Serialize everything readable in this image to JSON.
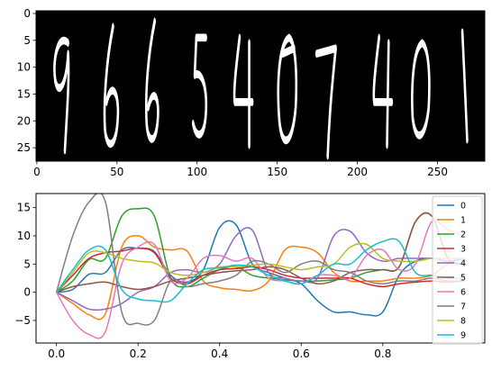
{
  "chart_data": [
    {
      "type": "image",
      "description_digits": [
        "9",
        "6",
        "6",
        "5",
        "4",
        "0",
        "7",
        "4",
        "0",
        "1"
      ],
      "xlim": [
        -0.5,
        279.5
      ],
      "ylim": [
        27.5,
        -0.5
      ],
      "xticks": [
        0,
        50,
        100,
        150,
        200,
        250
      ],
      "yticks": [
        0,
        5,
        10,
        15,
        20,
        25
      ]
    },
    {
      "type": "line",
      "xlim": [
        -0.05,
        1.05
      ],
      "ylim": [
        -9,
        17.5
      ],
      "xticks": [
        0.0,
        0.2,
        0.4,
        0.6,
        0.8
      ],
      "xtick_labels": [
        "0.0",
        "0.2",
        "0.4",
        "0.6",
        "0.8"
      ],
      "yticks": [
        -5,
        0,
        5,
        10,
        15
      ],
      "legend_position": "right",
      "grid": false,
      "series": [
        {
          "name": "0",
          "color": "#1f77b4",
          "x": [
            0,
            0.04,
            0.08,
            0.12,
            0.16,
            0.2,
            0.24,
            0.28,
            0.32,
            0.36,
            0.4,
            0.44,
            0.48,
            0.52,
            0.56,
            0.6,
            0.64,
            0.68,
            0.72,
            0.76,
            0.8,
            0.84,
            0.88,
            0.92,
            0.96,
            1.0
          ],
          "y": [
            0,
            0.5,
            3.2,
            3.5,
            7.5,
            7.8,
            7.2,
            3,
            1.8,
            4,
            11.5,
            12,
            5,
            3.5,
            2.5,
            1.5,
            -1.5,
            -3.5,
            -3.5,
            -4,
            -3.5,
            3,
            5.5,
            6,
            5.5,
            6
          ]
        },
        {
          "name": "1",
          "color": "#ff7f0e",
          "x": [
            0,
            0.04,
            0.08,
            0.12,
            0.16,
            0.2,
            0.24,
            0.28,
            0.32,
            0.36,
            0.4,
            0.44,
            0.48,
            0.52,
            0.56,
            0.6,
            0.64,
            0.68,
            0.72,
            0.76,
            0.8,
            0.84,
            0.88,
            0.92,
            0.96,
            1.0
          ],
          "y": [
            0,
            -2,
            -4,
            -3.8,
            8,
            10,
            8,
            7.5,
            7.3,
            2,
            0.8,
            0.5,
            0.3,
            2,
            7.5,
            8,
            7,
            3.5,
            2,
            2,
            2,
            2.5,
            2.5,
            3,
            5,
            5
          ]
        },
        {
          "name": "2",
          "color": "#2ca02c",
          "x": [
            0,
            0.04,
            0.08,
            0.12,
            0.16,
            0.2,
            0.24,
            0.28,
            0.32,
            0.36,
            0.4,
            0.44,
            0.48,
            0.52,
            0.56,
            0.6,
            0.64,
            0.68,
            0.72,
            0.76,
            0.8,
            0.84,
            0.88,
            0.92,
            0.96,
            1.0
          ],
          "y": [
            0,
            2,
            5.8,
            6,
            13.5,
            14.8,
            13.5,
            2.5,
            1,
            2.5,
            4,
            4.5,
            3,
            2.5,
            2.2,
            2,
            2,
            2.2,
            2.5,
            3.5,
            4,
            4.5,
            12.5,
            13.5,
            6,
            5
          ]
        },
        {
          "name": "3",
          "color": "#d62728",
          "x": [
            0,
            0.04,
            0.08,
            0.12,
            0.16,
            0.2,
            0.24,
            0.28,
            0.32,
            0.36,
            0.4,
            0.44,
            0.48,
            0.52,
            0.56,
            0.6,
            0.64,
            0.68,
            0.72,
            0.76,
            0.8,
            0.84,
            0.88,
            0.92,
            0.96,
            1.0
          ],
          "y": [
            0,
            3,
            6,
            7,
            7.3,
            7.8,
            7,
            2.5,
            1.5,
            3,
            4,
            4.2,
            4.5,
            4,
            3,
            2.5,
            2.5,
            2.5,
            2.5,
            1.5,
            1,
            1.5,
            1.8,
            2,
            1.8,
            2
          ]
        },
        {
          "name": "4",
          "color": "#9467bd",
          "x": [
            0,
            0.04,
            0.08,
            0.12,
            0.16,
            0.2,
            0.24,
            0.28,
            0.32,
            0.36,
            0.4,
            0.44,
            0.48,
            0.52,
            0.56,
            0.6,
            0.64,
            0.68,
            0.72,
            0.76,
            0.8,
            0.84,
            0.88,
            0.92,
            0.96,
            1.0
          ],
          "y": [
            0,
            -1.5,
            -3,
            -3,
            -2,
            0,
            1,
            3.5,
            4,
            3.5,
            5,
            10,
            11,
            3.5,
            2.5,
            2,
            2.5,
            10,
            10.8,
            7,
            5.5,
            6,
            6,
            6,
            5.5,
            5
          ]
        },
        {
          "name": "5",
          "color": "#8c564b",
          "x": [
            0,
            0.04,
            0.08,
            0.12,
            0.16,
            0.2,
            0.24,
            0.28,
            0.32,
            0.36,
            0.4,
            0.44,
            0.48,
            0.52,
            0.56,
            0.6,
            0.64,
            0.68,
            0.72,
            0.76,
            0.8,
            0.84,
            0.88,
            0.92,
            0.96,
            1.0
          ],
          "y": [
            0,
            1,
            1.5,
            1.8,
            1,
            0.5,
            1,
            2,
            2.5,
            3,
            3.5,
            3.8,
            4,
            4.5,
            4,
            2.5,
            1.5,
            2,
            3.5,
            4,
            4,
            4.5,
            12.5,
            13.5,
            6,
            5
          ]
        },
        {
          "name": "6",
          "color": "#e377c2",
          "x": [
            0,
            0.04,
            0.08,
            0.12,
            0.16,
            0.2,
            0.24,
            0.28,
            0.32,
            0.36,
            0.4,
            0.44,
            0.48,
            0.52,
            0.56,
            0.6,
            0.64,
            0.68,
            0.72,
            0.76,
            0.8,
            0.84,
            0.88,
            0.92,
            0.96,
            1.0
          ],
          "y": [
            0,
            -5,
            -7.5,
            -7,
            5,
            8,
            8.5,
            2,
            2.5,
            6,
            6.5,
            5.5,
            6,
            2.5,
            2,
            1.5,
            3,
            3,
            2.5,
            6.5,
            7.5,
            4,
            5,
            12.5,
            11,
            10
          ]
        },
        {
          "name": "7",
          "color": "#7f7f7f",
          "x": [
            0,
            0.04,
            0.08,
            0.12,
            0.16,
            0.2,
            0.24,
            0.28,
            0.32,
            0.36,
            0.4,
            0.44,
            0.48,
            0.52,
            0.56,
            0.6,
            0.64,
            0.68,
            0.72,
            0.76,
            0.8,
            0.84,
            0.88,
            0.92,
            0.96,
            1.0
          ],
          "y": [
            0,
            10,
            16,
            16,
            -3.5,
            -5.5,
            -5,
            2,
            1,
            1.5,
            2,
            3,
            5.5,
            5,
            3.5,
            5,
            5.5,
            4,
            3.5,
            2,
            1.5,
            2,
            2,
            2.5,
            2,
            2
          ]
        },
        {
          "name": "8",
          "color": "#bcbd22",
          "x": [
            0,
            0.04,
            0.08,
            0.12,
            0.16,
            0.2,
            0.24,
            0.28,
            0.32,
            0.36,
            0.4,
            0.44,
            0.48,
            0.52,
            0.56,
            0.6,
            0.64,
            0.68,
            0.72,
            0.76,
            0.8,
            0.84,
            0.88,
            0.92,
            0.96,
            1.0
          ],
          "y": [
            0,
            3.5,
            7,
            7,
            6,
            5.5,
            5.2,
            3.5,
            3,
            3.5,
            4.5,
            4.5,
            4.8,
            5,
            4.5,
            4,
            4.5,
            5,
            8,
            8.5,
            6,
            5.5,
            5.5,
            6,
            6,
            6
          ]
        },
        {
          "name": "9",
          "color": "#17becf",
          "x": [
            0,
            0.04,
            0.08,
            0.12,
            0.16,
            0.2,
            0.24,
            0.28,
            0.32,
            0.36,
            0.4,
            0.44,
            0.48,
            0.52,
            0.56,
            0.6,
            0.64,
            0.68,
            0.72,
            0.76,
            0.8,
            0.84,
            0.88,
            0.92,
            0.96,
            1.0
          ],
          "y": [
            0,
            4,
            7.5,
            7.5,
            0.5,
            -1.2,
            -1.5,
            -1.5,
            1.5,
            4,
            4.3,
            4.8,
            4.5,
            3,
            2,
            1.5,
            3,
            5,
            5,
            7.5,
            9,
            9,
            3.5,
            3,
            2.5,
            2.5
          ]
        }
      ]
    }
  ]
}
